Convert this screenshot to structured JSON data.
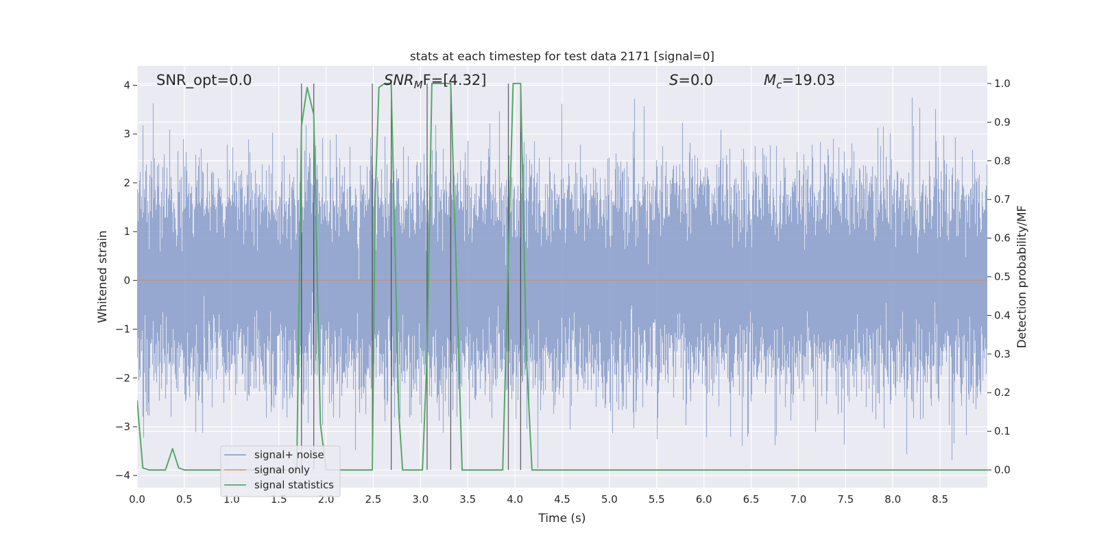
{
  "chart_data": {
    "type": "line",
    "title": "stats at each timestep for test data 2171 [signal=0]",
    "xlabel": "Time (s)",
    "ylabel": "Whitened strain",
    "ylabel_right": "Detection probability/MF",
    "xlim": [
      0.0,
      9.0
    ],
    "ylim": [
      -4.25,
      4.4
    ],
    "ylim_right": [
      -0.046,
      1.046
    ],
    "x_ticks": [
      0.0,
      0.5,
      1.0,
      1.5,
      2.0,
      2.5,
      3.0,
      3.5,
      4.0,
      4.5,
      5.0,
      5.5,
      6.0,
      6.5,
      7.0,
      7.5,
      8.0,
      8.5
    ],
    "x_tick_labels": [
      "0.0",
      "0.5",
      "1.0",
      "1.5",
      "2.0",
      "2.5",
      "3.0",
      "3.5",
      "4.0",
      "4.5",
      "5.0",
      "5.5",
      "6.0",
      "6.5",
      "7.0",
      "7.5",
      "8.0",
      "8.5"
    ],
    "y_ticks": [
      4,
      3,
      2,
      1,
      0,
      -1,
      -2,
      -3,
      -4
    ],
    "y_tick_labels": [
      "4",
      "3",
      "2",
      "1",
      "0",
      "−1",
      "−2",
      "−3",
      "−4"
    ],
    "y_right_ticks": [
      1.0,
      0.9,
      0.8,
      0.7,
      0.6,
      0.5,
      0.4,
      0.3,
      0.2,
      0.1,
      0.0
    ],
    "y_right_tick_labels": [
      "1.0",
      "0.9",
      "0.8",
      "0.7",
      "0.6",
      "0.5",
      "0.4",
      "0.3",
      "0.2",
      "0.1",
      "0.0"
    ],
    "grid": true,
    "legend_position": "lower-left",
    "annotations": {
      "snr_opt": "SNR_opt=0.0",
      "snr_mf_main": "SNR",
      "snr_mf_sub": "M",
      "snr_mf_rest": "F=[4.32]",
      "s_main": "S",
      "s_rest": "=0.0",
      "mc_main": "M",
      "mc_sub": "c",
      "mc_rest": "=19.03"
    },
    "series": [
      {
        "name": "signal+ noise",
        "color": "#4c72b0",
        "kind": "noise",
        "noise_sigma": 1.0,
        "sample_rate_hz": 2048,
        "peak_max": 3.97,
        "trough_min": -3.85
      },
      {
        "name": "signal only",
        "color": "#dd8452",
        "kind": "flat",
        "y": 0.0
      },
      {
        "name": "signal statistics",
        "color": "#55a868",
        "kind": "line",
        "axis": "right",
        "x": [
          0.0,
          0.06,
          0.125,
          0.3,
          0.375,
          0.44,
          0.5,
          1.69,
          1.74,
          1.8,
          1.87,
          1.94,
          2.0,
          2.49,
          2.52,
          2.56,
          2.62,
          2.69,
          2.77,
          2.81,
          3.02,
          3.07,
          3.12,
          3.19,
          3.25,
          3.32,
          3.38,
          3.44,
          3.87,
          3.93,
          3.98,
          4.06,
          4.12,
          4.18,
          9.0
        ],
        "y": [
          0.18,
          0.005,
          0.0,
          0.0,
          0.055,
          0.005,
          0.0,
          0.0,
          0.89,
          0.99,
          0.92,
          0.12,
          0.0,
          0.0,
          0.7,
          0.99,
          1.0,
          1.0,
          0.15,
          0.0,
          0.0,
          0.3,
          1.0,
          1.0,
          1.0,
          1.0,
          0.5,
          0.0,
          0.0,
          0.55,
          1.0,
          1.0,
          0.3,
          0.0,
          0.0
        ]
      }
    ],
    "vertical_lines": [
      1.74,
      1.87,
      2.49,
      2.69,
      3.07,
      3.32,
      3.93,
      4.06
    ]
  }
}
